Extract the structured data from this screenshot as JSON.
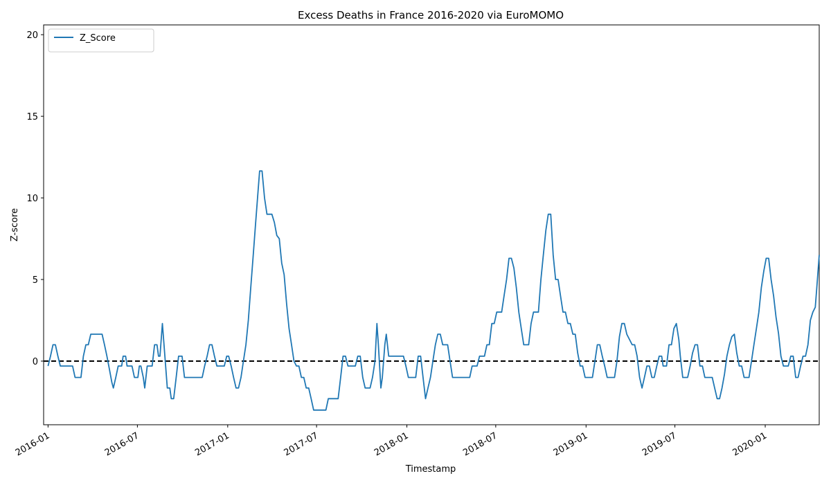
{
  "chart_data": {
    "type": "line",
    "title": "Excess Deaths in France 2016-2020 via EuroMOMO",
    "xlabel": "Timestamp",
    "ylabel": "Z-score",
    "xlim": [
      "2015-12-23",
      "2020-04-20"
    ],
    "ylim": [
      -3.9,
      20.6
    ],
    "yticks": [
      0,
      5,
      10,
      15,
      20
    ],
    "xticks": [
      "2016-01",
      "2016-07",
      "2017-01",
      "2017-07",
      "2018-01",
      "2018-07",
      "2019-01",
      "2019-07",
      "2020-01"
    ],
    "xticklabels": [
      "2016-01",
      "2016-07",
      "2017-01",
      "2017-07",
      "2018-01",
      "2018-07",
      "2019-01",
      "2019-07",
      "2020-01"
    ],
    "grid": false,
    "legend_position": "top-left",
    "reference_line": {
      "y": 0,
      "style": "dashed",
      "color": "#000000"
    },
    "series": [
      {
        "name": "Z_Score",
        "color": "#1f77b4",
        "points": [
          [
            "2016-01-01",
            -0.3
          ],
          [
            "2016-01-06",
            0.3
          ],
          [
            "2016-01-11",
            1.0
          ],
          [
            "2016-01-16",
            1.0
          ],
          [
            "2016-01-21",
            0.3
          ],
          [
            "2016-01-26",
            -0.3
          ],
          [
            "2016-02-10",
            -0.3
          ],
          [
            "2016-02-20",
            -0.3
          ],
          [
            "2016-02-25",
            -1.0
          ],
          [
            "2016-03-08",
            -1.0
          ],
          [
            "2016-03-13",
            0.3
          ],
          [
            "2016-03-18",
            1.0
          ],
          [
            "2016-03-23",
            1.0
          ],
          [
            "2016-03-28",
            1.65
          ],
          [
            "2016-04-20",
            1.65
          ],
          [
            "2016-04-25",
            1.0
          ],
          [
            "2016-04-30",
            0.3
          ],
          [
            "2016-05-05",
            -0.5
          ],
          [
            "2016-05-10",
            -1.3
          ],
          [
            "2016-05-13",
            -1.65
          ],
          [
            "2016-05-18",
            -1.0
          ],
          [
            "2016-05-23",
            -0.3
          ],
          [
            "2016-05-30",
            -0.3
          ],
          [
            "2016-06-02",
            0.3
          ],
          [
            "2016-06-07",
            0.3
          ],
          [
            "2016-06-10",
            -0.3
          ],
          [
            "2016-06-20",
            -0.3
          ],
          [
            "2016-06-25",
            -1.0
          ],
          [
            "2016-07-02",
            -1.0
          ],
          [
            "2016-07-05",
            -0.3
          ],
          [
            "2016-07-08",
            -0.3
          ],
          [
            "2016-07-13",
            -1.0
          ],
          [
            "2016-07-16",
            -1.65
          ],
          [
            "2016-07-21",
            -0.3
          ],
          [
            "2016-07-31",
            -0.3
          ],
          [
            "2016-08-05",
            1.0
          ],
          [
            "2016-08-10",
            1.0
          ],
          [
            "2016-08-13",
            0.3
          ],
          [
            "2016-08-16",
            0.3
          ],
          [
            "2016-08-21",
            2.3
          ],
          [
            "2016-08-26",
            0.3
          ],
          [
            "2016-08-31",
            -1.65
          ],
          [
            "2016-09-05",
            -1.65
          ],
          [
            "2016-09-08",
            -2.3
          ],
          [
            "2016-09-13",
            -2.3
          ],
          [
            "2016-09-18",
            -1.0
          ],
          [
            "2016-09-23",
            0.3
          ],
          [
            "2016-09-30",
            0.3
          ],
          [
            "2016-10-05",
            -1.0
          ],
          [
            "2016-11-10",
            -1.0
          ],
          [
            "2016-11-15",
            -0.3
          ],
          [
            "2016-11-20",
            0.3
          ],
          [
            "2016-11-25",
            1.0
          ],
          [
            "2016-11-30",
            1.0
          ],
          [
            "2016-12-05",
            0.3
          ],
          [
            "2016-12-10",
            -0.3
          ],
          [
            "2016-12-25",
            -0.3
          ],
          [
            "2016-12-30",
            0.3
          ],
          [
            "2017-01-03",
            0.3
          ],
          [
            "2017-01-08",
            -0.3
          ],
          [
            "2017-01-13",
            -1.0
          ],
          [
            "2017-01-18",
            -1.65
          ],
          [
            "2017-01-23",
            -1.65
          ],
          [
            "2017-01-28",
            -1.0
          ],
          [
            "2017-02-02",
            0.0
          ],
          [
            "2017-02-07",
            1.0
          ],
          [
            "2017-02-12",
            2.5
          ],
          [
            "2017-02-17",
            4.5
          ],
          [
            "2017-02-22",
            6.5
          ],
          [
            "2017-02-27",
            8.5
          ],
          [
            "2017-03-04",
            10.5
          ],
          [
            "2017-03-07",
            11.65
          ],
          [
            "2017-03-12",
            11.65
          ],
          [
            "2017-03-17",
            10.0
          ],
          [
            "2017-03-22",
            9.0
          ],
          [
            "2017-04-01",
            9.0
          ],
          [
            "2017-04-06",
            8.5
          ],
          [
            "2017-04-11",
            7.7
          ],
          [
            "2017-04-16",
            7.5
          ],
          [
            "2017-04-21",
            6.0
          ],
          [
            "2017-04-26",
            5.3
          ],
          [
            "2017-05-01",
            3.5
          ],
          [
            "2017-05-06",
            2.0
          ],
          [
            "2017-05-11",
            1.0
          ],
          [
            "2017-05-16",
            0.0
          ],
          [
            "2017-05-21",
            -0.3
          ],
          [
            "2017-05-26",
            -0.3
          ],
          [
            "2017-05-31",
            -1.0
          ],
          [
            "2017-06-05",
            -1.0
          ],
          [
            "2017-06-10",
            -1.65
          ],
          [
            "2017-06-15",
            -1.65
          ],
          [
            "2017-06-20",
            -2.3
          ],
          [
            "2017-06-25",
            -3.0
          ],
          [
            "2017-07-20",
            -3.0
          ],
          [
            "2017-07-25",
            -2.3
          ],
          [
            "2017-08-14",
            -2.3
          ],
          [
            "2017-08-19",
            -1.0
          ],
          [
            "2017-08-24",
            0.3
          ],
          [
            "2017-08-29",
            0.3
          ],
          [
            "2017-09-03",
            -0.3
          ],
          [
            "2017-09-18",
            -0.3
          ],
          [
            "2017-09-23",
            0.3
          ],
          [
            "2017-09-28",
            0.3
          ],
          [
            "2017-10-03",
            -1.0
          ],
          [
            "2017-10-08",
            -1.65
          ],
          [
            "2017-10-18",
            -1.65
          ],
          [
            "2017-10-23",
            -1.0
          ],
          [
            "2017-10-28",
            0.0
          ],
          [
            "2017-11-01",
            2.3
          ],
          [
            "2017-11-04",
            1.0
          ],
          [
            "2017-11-09",
            -1.65
          ],
          [
            "2017-11-12",
            -1.0
          ],
          [
            "2017-11-17",
            1.0
          ],
          [
            "2017-11-20",
            1.65
          ],
          [
            "2017-11-25",
            0.3
          ],
          [
            "2017-12-25",
            0.3
          ],
          [
            "2017-12-30",
            -0.3
          ],
          [
            "2018-01-04",
            -1.0
          ],
          [
            "2018-01-19",
            -1.0
          ],
          [
            "2018-01-24",
            0.3
          ],
          [
            "2018-01-29",
            0.3
          ],
          [
            "2018-02-03",
            -1.0
          ],
          [
            "2018-02-08",
            -2.3
          ],
          [
            "2018-02-13",
            -1.65
          ],
          [
            "2018-02-18",
            -1.0
          ],
          [
            "2018-02-23",
            0.0
          ],
          [
            "2018-02-28",
            1.0
          ],
          [
            "2018-03-05",
            1.65
          ],
          [
            "2018-03-10",
            1.65
          ],
          [
            "2018-03-15",
            1.0
          ],
          [
            "2018-03-25",
            1.0
          ],
          [
            "2018-03-30",
            0.0
          ],
          [
            "2018-04-04",
            -1.0
          ],
          [
            "2018-05-09",
            -1.0
          ],
          [
            "2018-05-14",
            -0.3
          ],
          [
            "2018-05-24",
            -0.3
          ],
          [
            "2018-05-29",
            0.3
          ],
          [
            "2018-06-08",
            0.3
          ],
          [
            "2018-06-13",
            1.0
          ],
          [
            "2018-06-18",
            1.0
          ],
          [
            "2018-06-23",
            2.3
          ],
          [
            "2018-06-28",
            2.3
          ],
          [
            "2018-07-03",
            3.0
          ],
          [
            "2018-07-13",
            3.0
          ],
          [
            "2018-07-18",
            4.0
          ],
          [
            "2018-07-23",
            5.0
          ],
          [
            "2018-07-28",
            6.3
          ],
          [
            "2018-08-02",
            6.3
          ],
          [
            "2018-08-07",
            5.7
          ],
          [
            "2018-08-12",
            4.5
          ],
          [
            "2018-08-17",
            3.0
          ],
          [
            "2018-08-22",
            2.0
          ],
          [
            "2018-08-27",
            1.0
          ],
          [
            "2018-09-06",
            1.0
          ],
          [
            "2018-09-11",
            2.3
          ],
          [
            "2018-09-16",
            3.0
          ],
          [
            "2018-09-26",
            3.0
          ],
          [
            "2018-10-01",
            5.0
          ],
          [
            "2018-10-06",
            6.5
          ],
          [
            "2018-10-11",
            8.0
          ],
          [
            "2018-10-16",
            9.0
          ],
          [
            "2018-10-21",
            9.0
          ],
          [
            "2018-10-26",
            6.5
          ],
          [
            "2018-10-31",
            5.0
          ],
          [
            "2018-11-05",
            5.0
          ],
          [
            "2018-11-10",
            4.0
          ],
          [
            "2018-11-15",
            3.0
          ],
          [
            "2018-11-20",
            3.0
          ],
          [
            "2018-11-25",
            2.3
          ],
          [
            "2018-11-30",
            2.3
          ],
          [
            "2018-12-05",
            1.65
          ],
          [
            "2018-12-10",
            1.65
          ],
          [
            "2018-12-15",
            0.5
          ],
          [
            "2018-12-20",
            -0.3
          ],
          [
            "2018-12-25",
            -0.3
          ],
          [
            "2018-12-30",
            -1.0
          ],
          [
            "2019-01-14",
            -1.0
          ],
          [
            "2019-01-19",
            0.0
          ],
          [
            "2019-01-24",
            1.0
          ],
          [
            "2019-01-29",
            1.0
          ],
          [
            "2019-02-03",
            0.3
          ],
          [
            "2019-02-08",
            -0.3
          ],
          [
            "2019-02-13",
            -1.0
          ],
          [
            "2019-02-28",
            -1.0
          ],
          [
            "2019-03-05",
            0.0
          ],
          [
            "2019-03-10",
            1.5
          ],
          [
            "2019-03-15",
            2.3
          ],
          [
            "2019-03-20",
            2.3
          ],
          [
            "2019-03-25",
            1.65
          ],
          [
            "2019-04-05",
            1.0
          ],
          [
            "2019-04-10",
            1.0
          ],
          [
            "2019-04-15",
            0.3
          ],
          [
            "2019-04-20",
            -1.0
          ],
          [
            "2019-04-25",
            -1.65
          ],
          [
            "2019-04-30",
            -1.0
          ],
          [
            "2019-05-05",
            -0.3
          ],
          [
            "2019-05-10",
            -0.3
          ],
          [
            "2019-05-15",
            -1.0
          ],
          [
            "2019-05-20",
            -1.0
          ],
          [
            "2019-05-25",
            -0.3
          ],
          [
            "2019-05-30",
            0.3
          ],
          [
            "2019-06-04",
            0.3
          ],
          [
            "2019-06-07",
            -0.3
          ],
          [
            "2019-06-14",
            -0.3
          ],
          [
            "2019-06-19",
            1.0
          ],
          [
            "2019-06-24",
            1.0
          ],
          [
            "2019-06-29",
            2.0
          ],
          [
            "2019-07-04",
            2.3
          ],
          [
            "2019-07-09",
            1.3
          ],
          [
            "2019-07-12",
            0.3
          ],
          [
            "2019-07-17",
            -1.0
          ],
          [
            "2019-07-27",
            -1.0
          ],
          [
            "2019-08-01",
            -0.3
          ],
          [
            "2019-08-06",
            0.5
          ],
          [
            "2019-08-11",
            1.0
          ],
          [
            "2019-08-16",
            1.0
          ],
          [
            "2019-08-21",
            -0.3
          ],
          [
            "2019-08-26",
            -0.3
          ],
          [
            "2019-08-31",
            -1.0
          ],
          [
            "2019-09-15",
            -1.0
          ],
          [
            "2019-09-20",
            -1.65
          ],
          [
            "2019-09-25",
            -2.3
          ],
          [
            "2019-09-30",
            -2.3
          ],
          [
            "2019-10-05",
            -1.65
          ],
          [
            "2019-10-10",
            -0.8
          ],
          [
            "2019-10-15",
            0.3
          ],
          [
            "2019-10-20",
            1.0
          ],
          [
            "2019-10-25",
            1.5
          ],
          [
            "2019-10-30",
            1.65
          ],
          [
            "2019-11-04",
            0.5
          ],
          [
            "2019-11-09",
            -0.3
          ],
          [
            "2019-11-14",
            -0.3
          ],
          [
            "2019-11-19",
            -1.0
          ],
          [
            "2019-11-29",
            -1.0
          ],
          [
            "2019-12-04",
            0.0
          ],
          [
            "2019-12-09",
            1.0
          ],
          [
            "2019-12-14",
            2.0
          ],
          [
            "2019-12-19",
            3.0
          ],
          [
            "2019-12-24",
            4.5
          ],
          [
            "2019-12-29",
            5.5
          ],
          [
            "2020-01-03",
            6.3
          ],
          [
            "2020-01-08",
            6.3
          ],
          [
            "2020-01-13",
            5.0
          ],
          [
            "2020-01-18",
            4.0
          ],
          [
            "2020-01-23",
            2.7
          ],
          [
            "2020-01-28",
            1.7
          ],
          [
            "2020-02-02",
            0.3
          ],
          [
            "2020-02-07",
            -0.3
          ],
          [
            "2020-02-17",
            -0.3
          ],
          [
            "2020-02-22",
            0.3
          ],
          [
            "2020-02-27",
            0.3
          ],
          [
            "2020-03-03",
            -1.0
          ],
          [
            "2020-03-08",
            -1.0
          ],
          [
            "2020-03-13",
            -0.3
          ],
          [
            "2020-03-18",
            0.3
          ],
          [
            "2020-03-23",
            0.3
          ],
          [
            "2020-03-28",
            1.0
          ],
          [
            "2020-04-02",
            2.5
          ],
          [
            "2020-04-07",
            3.0
          ],
          [
            "2020-04-12",
            3.3
          ],
          [
            "2020-04-15",
            4.5
          ],
          [
            "2020-04-20",
            6.5
          ]
        ]
      }
    ]
  }
}
